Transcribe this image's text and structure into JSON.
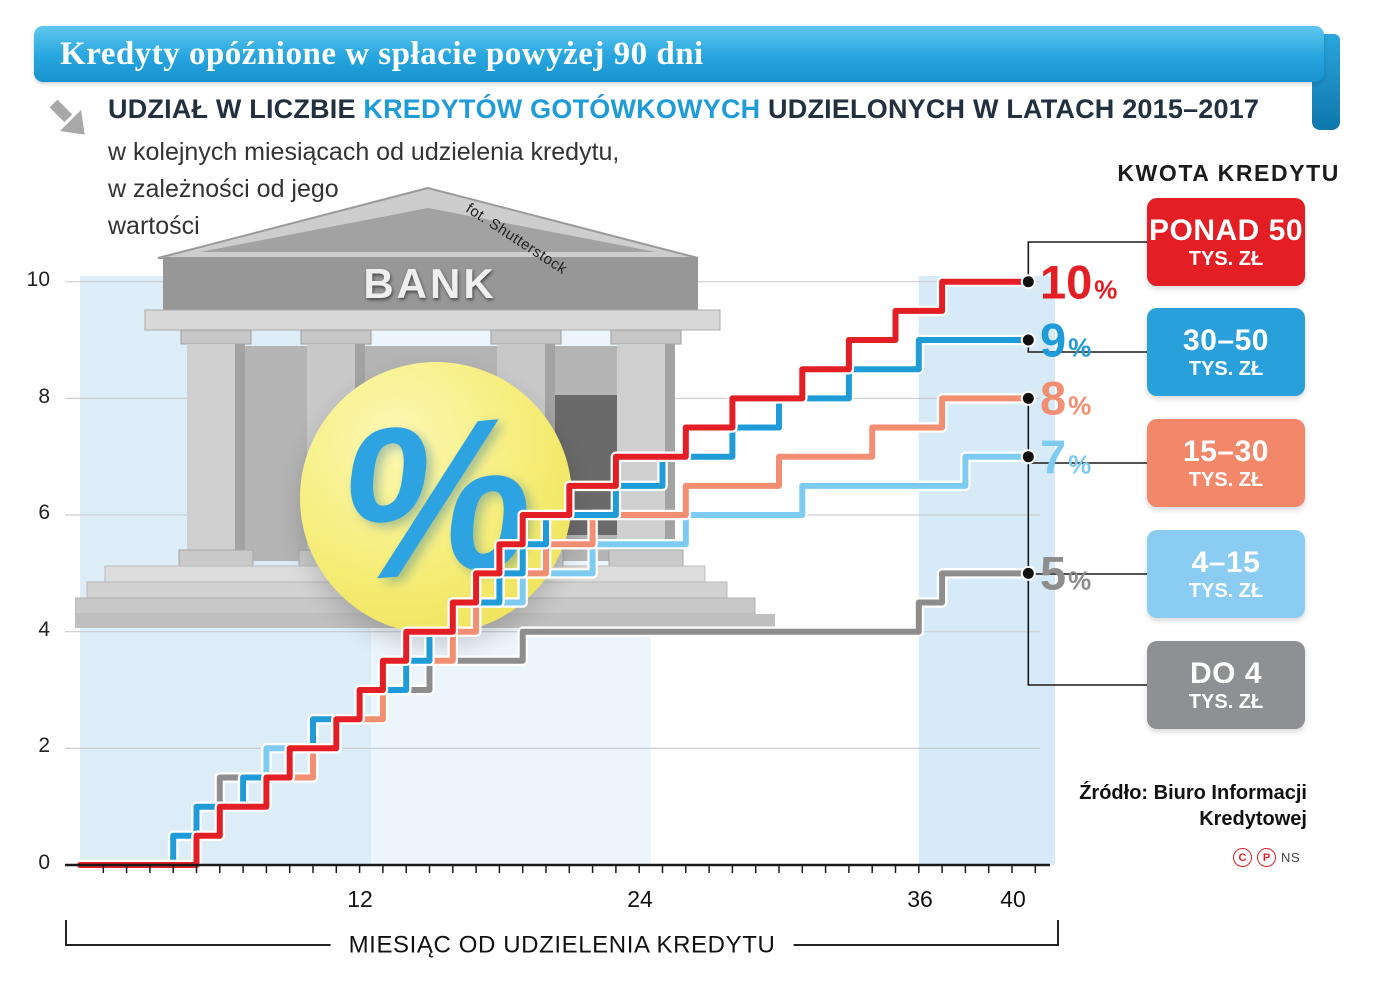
{
  "header": {
    "title": "Kredyty opóźnione w spłacie powyżej 90 dni"
  },
  "intro": {
    "heading_p1": "UDZIAŁ W LICZBIE ",
    "heading_highlight": "KREDYTÓW GOTÓWKOWYCH",
    "heading_p2": " UDZIELONYCH W LATACH 2015–2017",
    "sub1": "w kolejnych miesiącach od udzielenia kredytu,",
    "sub2": "w zależności od jego",
    "sub3": "wartości"
  },
  "bank": {
    "label": "BANK",
    "photo_credit": "fot. Shutterstock",
    "percent_symbol": "%"
  },
  "labels": {
    "percent": "%"
  },
  "legend": {
    "title": "KWOTA KREDYTU",
    "items": [
      {
        "line1": "PONAD 50",
        "line2": "TYS. ZŁ",
        "color": "#e31e24"
      },
      {
        "line1": "30–50",
        "line2": "TYS. ZŁ",
        "color": "#2aa0da"
      },
      {
        "line1": "15–30",
        "line2": "TYS. ZŁ",
        "color": "#f2876a"
      },
      {
        "line1": "4–15",
        "line2": "TYS. ZŁ",
        "color": "#8bcdf2"
      },
      {
        "line1": "DO 4",
        "line2": "TYS. ZŁ",
        "color": "#8e9093"
      }
    ]
  },
  "source": {
    "line1": "Źródło: Biuro Informacji",
    "line2": "Kredytowej",
    "marks": {
      "copyright": "C",
      "press": "P",
      "initials": "NS"
    }
  },
  "chart_data": {
    "type": "line",
    "subtype": "step",
    "title": "Udział w liczbie kredytów gotówkowych udzielonych w latach 2015–2017 opóźnionych w spłacie powyżej 90 dni (%)",
    "xlabel": "MIESIĄC OD UDZIELENIA KREDYTU",
    "ylabel": "%",
    "x_ticks": [
      12,
      24,
      36,
      40
    ],
    "y_ticks": [
      0,
      2,
      4,
      6,
      8,
      10
    ],
    "xlim": [
      0,
      42
    ],
    "ylim": [
      0,
      10.3
    ],
    "x_end": 40.7,
    "grid": true,
    "legend_position": "right",
    "bands": [
      {
        "from": 0,
        "to": 12.5,
        "color": "#ddedf7"
      },
      {
        "from": 12.5,
        "to": 24.5,
        "color": "#ecf5fb"
      },
      {
        "from": 36,
        "to": 42.2,
        "color": "#d6ebf7"
      }
    ],
    "series": [
      {
        "name": "PONAD 50 TYS. ZŁ",
        "color": "#e31e24",
        "end_label": "10",
        "final_value": 10,
        "points": [
          [
            0,
            0
          ],
          [
            5,
            0.5
          ],
          [
            6,
            1
          ],
          [
            8,
            1.5
          ],
          [
            9,
            2
          ],
          [
            11,
            2.5
          ],
          [
            12,
            3
          ],
          [
            13,
            3.5
          ],
          [
            14,
            4
          ],
          [
            16,
            4.5
          ],
          [
            17,
            5
          ],
          [
            18,
            5.5
          ],
          [
            19,
            6
          ],
          [
            21,
            6.5
          ],
          [
            23,
            7
          ],
          [
            26,
            7.5
          ],
          [
            28,
            8
          ],
          [
            31,
            8.5
          ],
          [
            33,
            9
          ],
          [
            35,
            9.5
          ],
          [
            37,
            10
          ]
        ]
      },
      {
        "name": "30–50 TYS. ZŁ",
        "color": "#1f9cd8",
        "end_label": "9",
        "final_value": 9,
        "points": [
          [
            0,
            0
          ],
          [
            4,
            0.5
          ],
          [
            5,
            1
          ],
          [
            7,
            1.5
          ],
          [
            9,
            2
          ],
          [
            10,
            2.5
          ],
          [
            12,
            3
          ],
          [
            14,
            3.5
          ],
          [
            15,
            4
          ],
          [
            16,
            4.5
          ],
          [
            18,
            5
          ],
          [
            19,
            5.5
          ],
          [
            20,
            6
          ],
          [
            23,
            6.5
          ],
          [
            25,
            7
          ],
          [
            28,
            7.5
          ],
          [
            30,
            8
          ],
          [
            33,
            8.5
          ],
          [
            36,
            9
          ]
        ]
      },
      {
        "name": "15–30 TYS. ZŁ",
        "color": "#f28e72",
        "end_label": "8",
        "final_value": 8,
        "points": [
          [
            0,
            0
          ],
          [
            4,
            0.5
          ],
          [
            6,
            1
          ],
          [
            8,
            1.5
          ],
          [
            10,
            2
          ],
          [
            11,
            2.5
          ],
          [
            13,
            3
          ],
          [
            14,
            3.5
          ],
          [
            16,
            4
          ],
          [
            17,
            4.5
          ],
          [
            18,
            5
          ],
          [
            20,
            5.5
          ],
          [
            22,
            6
          ],
          [
            26,
            6.5
          ],
          [
            30,
            7
          ],
          [
            34,
            7.5
          ],
          [
            37,
            8
          ]
        ]
      },
      {
        "name": "4–15 TYS. ZŁ",
        "color": "#7ecbf1",
        "end_label": "7",
        "final_value": 7,
        "points": [
          [
            0,
            0
          ],
          [
            4,
            0.5
          ],
          [
            5,
            1
          ],
          [
            7,
            1.5
          ],
          [
            8,
            2
          ],
          [
            10,
            2.5
          ],
          [
            12,
            3
          ],
          [
            14,
            3.5
          ],
          [
            15,
            4
          ],
          [
            17,
            4.5
          ],
          [
            19,
            5
          ],
          [
            22,
            5.5
          ],
          [
            26,
            6
          ],
          [
            31,
            6.5
          ],
          [
            38,
            7
          ]
        ]
      },
      {
        "name": "DO 4 TYS. ZŁ",
        "color": "#8d8d8d",
        "end_label": "5",
        "final_value": 5,
        "points": [
          [
            0,
            0
          ],
          [
            4,
            0.5
          ],
          [
            5,
            1
          ],
          [
            6,
            1.5
          ],
          [
            8,
            2
          ],
          [
            10,
            2.5
          ],
          [
            12,
            3
          ],
          [
            15,
            3.5
          ],
          [
            19,
            4
          ],
          [
            36,
            4.5
          ],
          [
            37,
            5
          ]
        ]
      }
    ]
  }
}
